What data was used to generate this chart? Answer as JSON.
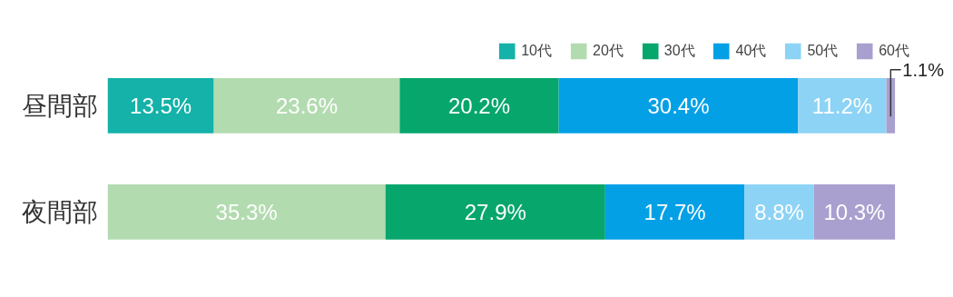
{
  "chart_data": {
    "type": "bar",
    "orientation": "horizontal",
    "stacked": true,
    "categories": [
      "昼間部",
      "夜間部"
    ],
    "legend": "top right",
    "grid": false,
    "series": [
      {
        "name": "10代",
        "color": "#14b2a8",
        "values": [
          13.5,
          null
        ],
        "value_labels": [
          "13.5%",
          null
        ]
      },
      {
        "name": "20代",
        "color": "#b3dbb0",
        "values": [
          23.6,
          35.3
        ],
        "value_labels": [
          "23.6%",
          "35.3%"
        ]
      },
      {
        "name": "30代",
        "color": "#06a66c",
        "values": [
          20.2,
          27.9
        ],
        "value_labels": [
          "20.2%",
          "27.9%"
        ]
      },
      {
        "name": "40代",
        "color": "#03a0e6",
        "values": [
          30.4,
          17.7
        ],
        "value_labels": [
          "30.4%",
          "17.7%"
        ]
      },
      {
        "name": "50代",
        "color": "#8dd3f5",
        "values": [
          11.2,
          8.8
        ],
        "value_labels": [
          "11.2%",
          "8.8%"
        ]
      },
      {
        "name": "60代",
        "color": "#a9a0cf",
        "values": [
          1.1,
          10.3
        ],
        "value_labels": [
          "1.1%",
          "10.3%"
        ]
      }
    ]
  }
}
